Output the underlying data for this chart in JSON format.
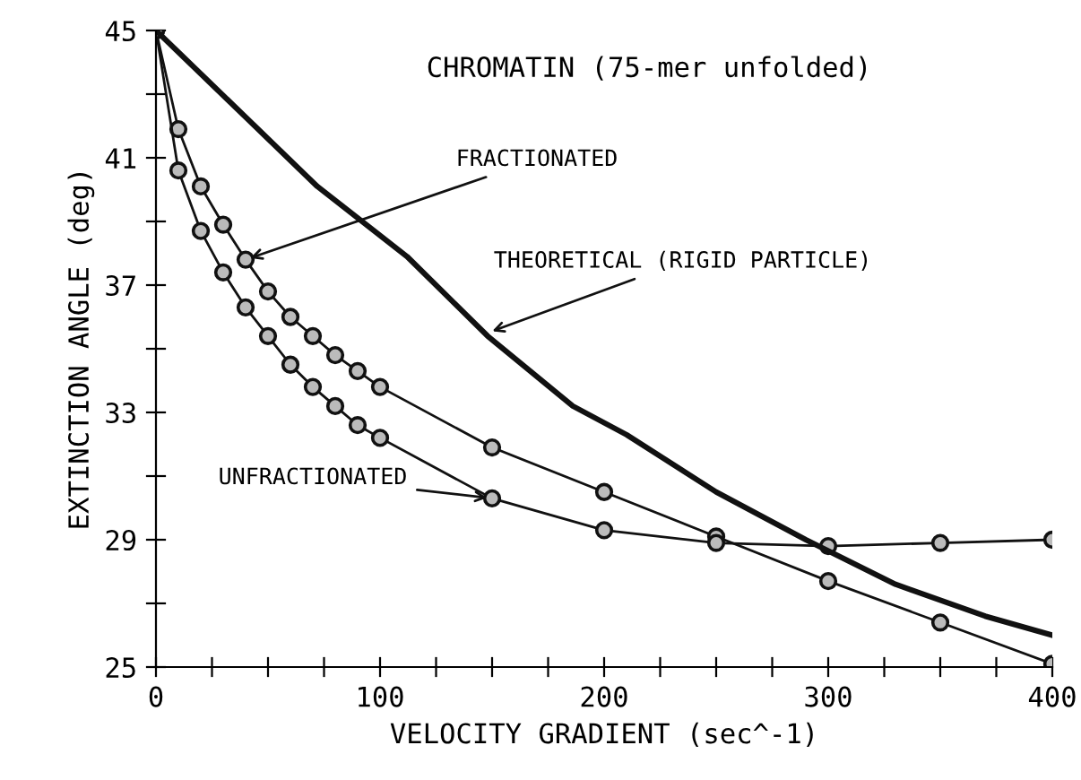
{
  "chart_data": {
    "type": "line",
    "title": "CHROMATIN (75-mer unfolded)",
    "xlabel": "VELOCITY GRADIENT (sec^-1)",
    "ylabel": "EXTINCTION ANGLE (deg)",
    "xlim": [
      0,
      400
    ],
    "ylim": [
      25,
      45
    ],
    "xticks": [
      0,
      {
        "value": 25,
        "label": null
      },
      {
        "value": 50,
        "label": null
      },
      {
        "value": 75,
        "label": null
      },
      100,
      {
        "value": 125,
        "label": null
      },
      {
        "value": 150,
        "label": null
      },
      {
        "value": 175,
        "label": null
      },
      200,
      {
        "value": 225,
        "label": null
      },
      {
        "value": 250,
        "label": null
      },
      {
        "value": 275,
        "label": null
      },
      300,
      {
        "value": 325,
        "label": null
      },
      {
        "value": 350,
        "label": null
      },
      {
        "value": 375,
        "label": null
      },
      400
    ],
    "yticks": [
      25,
      {
        "value": 27,
        "label": null
      },
      29,
      {
        "value": 31,
        "label": null
      },
      33,
      {
        "value": 35,
        "label": null
      },
      37,
      {
        "value": 39,
        "label": null
      },
      41,
      {
        "value": 43,
        "label": null
      },
      45
    ],
    "grid": false,
    "line_style": "solid",
    "series": [
      {
        "color": "#111111",
        "marker": "circle",
        "x": [
          0,
          10,
          20,
          30,
          40,
          50,
          60,
          70,
          80,
          90,
          100,
          150,
          200,
          250,
          300,
          350,
          400
        ],
        "values": [
          45,
          41.9,
          40.1,
          38.9,
          37.8,
          36.8,
          36.0,
          35.4,
          34.8,
          34.3,
          33.8,
          31.9,
          30.5,
          29.1,
          27.7,
          26.4,
          25.1
        ]
      },
      {
        "color": "#111111",
        "marker": "circle",
        "x": [
          0,
          10,
          20,
          30,
          40,
          50,
          60,
          70,
          80,
          90,
          100,
          150,
          200,
          250,
          300,
          350,
          400
        ],
        "values": [
          45,
          40.6,
          38.7,
          37.4,
          36.3,
          35.4,
          34.5,
          33.8,
          33.2,
          32.6,
          32.2,
          30.3,
          29.3,
          28.9,
          28.8,
          28.9,
          29.0
        ]
      },
      {
        "color": "#111111",
        "marker": "none",
        "x": [
          0,
          72,
          112,
          148,
          186,
          210,
          250,
          290,
          330,
          370,
          400
        ],
        "values": [
          45,
          40.1,
          37.9,
          35.4,
          33.2,
          32.3,
          30.5,
          29.0,
          27.6,
          26.6,
          26.0
        ]
      }
    ],
    "annotations": [
      {
        "text": "FRACTIONATED",
        "x": 40,
        "y": 37.8
      },
      {
        "text": "THEORETICAL (RIGID PARTICLE)",
        "x": 148,
        "y": 35.5
      },
      {
        "text": "UNFRACTIONATED",
        "x": 150,
        "y": 30.3
      }
    ]
  }
}
